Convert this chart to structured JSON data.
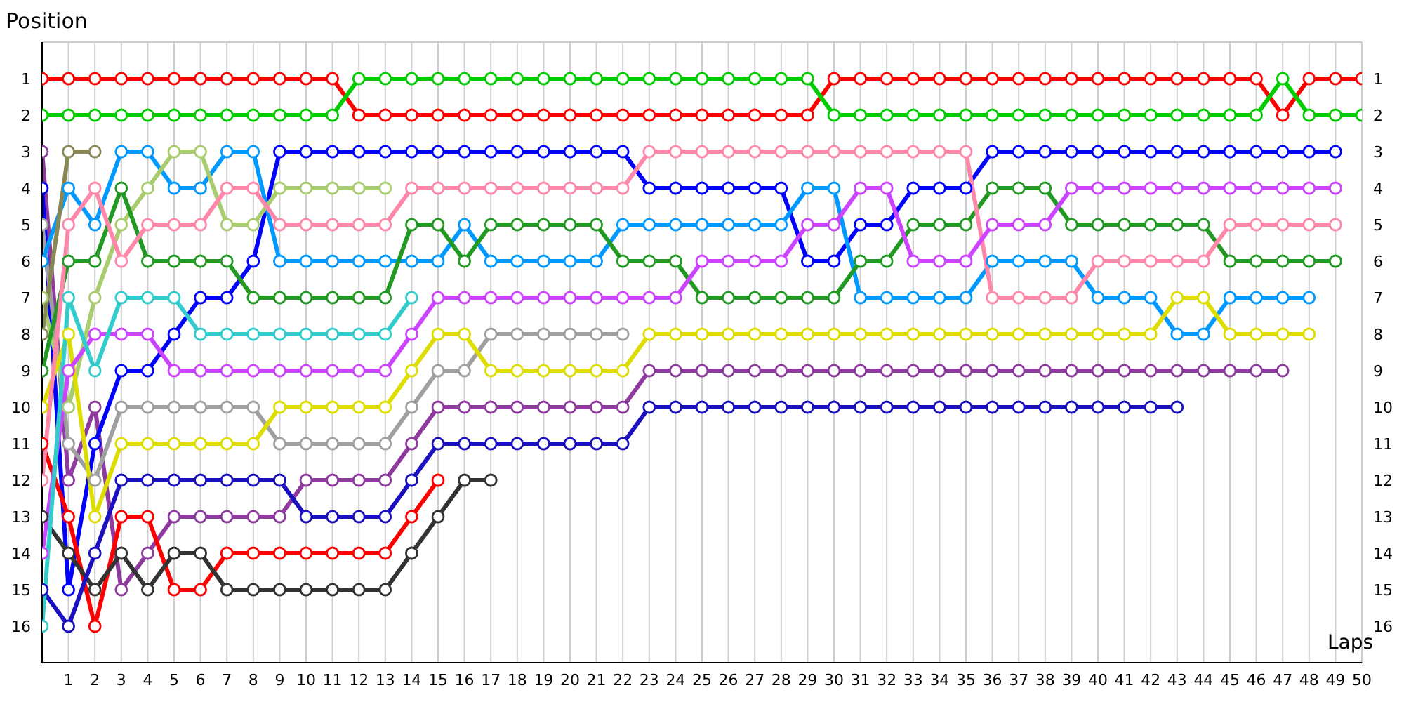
{
  "chart_data": {
    "type": "line",
    "xlabel": "Laps",
    "ylabel": "Position",
    "x": [
      0,
      1,
      2,
      3,
      4,
      5,
      6,
      7,
      8,
      9,
      10,
      11,
      12,
      13,
      14,
      15,
      16,
      17,
      18,
      19,
      20,
      21,
      22,
      23,
      24,
      25,
      26,
      27,
      28,
      29,
      30,
      31,
      32,
      33,
      34,
      35,
      36,
      37,
      38,
      39,
      40,
      41,
      42,
      43,
      44,
      45,
      46,
      47,
      48,
      49,
      50
    ],
    "xlim": [
      0,
      50
    ],
    "xticks": [
      1,
      2,
      3,
      4,
      5,
      6,
      7,
      8,
      9,
      10,
      11,
      12,
      13,
      14,
      15,
      16,
      17,
      18,
      19,
      20,
      21,
      22,
      23,
      24,
      25,
      26,
      27,
      28,
      29,
      30,
      31,
      32,
      33,
      34,
      35,
      36,
      37,
      38,
      39,
      40,
      41,
      42,
      43,
      44,
      45,
      46,
      47,
      48,
      49,
      50
    ],
    "ylim": [
      17,
      0
    ],
    "yticks": [
      1,
      2,
      3,
      4,
      5,
      6,
      7,
      8,
      9,
      10,
      11,
      12,
      13,
      14,
      15,
      16
    ],
    "y2lim": [
      17,
      0
    ],
    "y2ticks": [
      1,
      2,
      3,
      4,
      5,
      6,
      7,
      8,
      9,
      10,
      11,
      12,
      13,
      14,
      15,
      16
    ],
    "grid": true,
    "marker": "circle",
    "line_style": "solid",
    "series": [
      {
        "color": "#ff0000",
        "values": [
          1,
          1,
          1,
          1,
          1,
          1,
          1,
          1,
          1,
          1,
          1,
          1,
          2,
          2,
          2,
          2,
          2,
          2,
          2,
          2,
          2,
          2,
          2,
          2,
          2,
          2,
          2,
          2,
          2,
          2,
          1,
          1,
          1,
          1,
          1,
          1,
          1,
          1,
          1,
          1,
          1,
          1,
          1,
          1,
          1,
          1,
          1,
          2,
          1,
          1,
          1
        ]
      },
      {
        "color": "#00cc00",
        "values": [
          2,
          2,
          2,
          2,
          2,
          2,
          2,
          2,
          2,
          2,
          2,
          2,
          1,
          1,
          1,
          1,
          1,
          1,
          1,
          1,
          1,
          1,
          1,
          1,
          1,
          1,
          1,
          1,
          1,
          1,
          2,
          2,
          2,
          2,
          2,
          2,
          2,
          2,
          2,
          2,
          2,
          2,
          2,
          2,
          2,
          2,
          2,
          1,
          2,
          2,
          2
        ]
      },
      {
        "color": "#8e3a9e",
        "values": [
          3,
          12,
          10,
          15,
          14,
          13,
          13,
          13,
          13,
          13,
          12,
          12,
          12,
          12,
          11,
          10,
          10,
          10,
          10,
          10,
          10,
          10,
          10,
          9,
          9,
          9,
          9,
          9,
          9,
          9,
          9,
          9,
          9,
          9,
          9,
          9,
          9,
          9,
          9,
          9,
          9,
          9,
          9,
          9,
          9,
          9,
          9,
          9,
          null,
          null,
          null
        ]
      },
      {
        "color": "#0000ff",
        "values": [
          4,
          15,
          11,
          9,
          9,
          8,
          7,
          7,
          6,
          3,
          3,
          3,
          3,
          3,
          3,
          3,
          3,
          3,
          3,
          3,
          3,
          3,
          3,
          4,
          4,
          4,
          4,
          4,
          4,
          6,
          6,
          5,
          5,
          4,
          4,
          4,
          3,
          3,
          3,
          3,
          3,
          3,
          3,
          3,
          3,
          3,
          3,
          3,
          3,
          3,
          null
        ]
      },
      {
        "color": "#a0a0a0",
        "values": [
          5,
          11,
          12,
          10,
          10,
          10,
          10,
          10,
          10,
          11,
          11,
          11,
          11,
          11,
          10,
          9,
          9,
          8,
          8,
          8,
          8,
          8,
          8,
          null,
          null,
          null,
          null,
          null,
          null,
          null,
          null,
          null,
          null,
          null,
          null,
          null,
          null,
          null,
          null,
          null,
          null,
          null,
          null,
          null,
          null,
          null,
          null,
          null,
          null,
          null,
          null
        ]
      },
      {
        "color": "#0099ff",
        "values": [
          6,
          4,
          5,
          3,
          3,
          4,
          4,
          3,
          3,
          6,
          6,
          6,
          6,
          6,
          6,
          6,
          5,
          6,
          6,
          6,
          6,
          6,
          5,
          5,
          5,
          5,
          5,
          5,
          5,
          4,
          4,
          7,
          7,
          7,
          7,
          7,
          6,
          6,
          6,
          6,
          7,
          7,
          7,
          8,
          8,
          7,
          7,
          7,
          7,
          null,
          null
        ]
      },
      {
        "color": "#a8cc6e",
        "values": [
          7,
          10,
          7,
          5,
          4,
          3,
          3,
          5,
          5,
          4,
          4,
          4,
          4,
          4,
          null,
          null,
          null,
          null,
          null,
          null,
          null,
          null,
          null,
          null,
          null,
          null,
          null,
          null,
          null,
          null,
          null,
          null,
          null,
          null,
          null,
          null,
          null,
          null,
          null,
          null,
          null,
          null,
          null,
          null,
          null,
          null,
          null,
          null,
          null,
          null,
          null
        ]
      },
      {
        "color": "#888855",
        "values": [
          8,
          3,
          3,
          null,
          null,
          null,
          null,
          null,
          null,
          null,
          null,
          null,
          null,
          null,
          null,
          null,
          null,
          null,
          null,
          null,
          null,
          null,
          null,
          null,
          null,
          null,
          null,
          null,
          null,
          null,
          null,
          null,
          null,
          null,
          null,
          null,
          null,
          null,
          null,
          null,
          null,
          null,
          null,
          null,
          null,
          null,
          null,
          null,
          null,
          null,
          null
        ]
      },
      {
        "color": "#229922",
        "values": [
          9,
          6,
          6,
          4,
          6,
          6,
          6,
          6,
          7,
          7,
          7,
          7,
          7,
          7,
          5,
          5,
          6,
          5,
          5,
          5,
          5,
          5,
          6,
          6,
          6,
          7,
          7,
          7,
          7,
          7,
          7,
          6,
          6,
          5,
          5,
          5,
          4,
          4,
          4,
          5,
          5,
          5,
          5,
          5,
          5,
          6,
          6,
          6,
          6,
          6,
          null
        ]
      },
      {
        "color": "#dddd00",
        "values": [
          10,
          8,
          13,
          11,
          11,
          11,
          11,
          11,
          11,
          10,
          10,
          10,
          10,
          10,
          9,
          8,
          8,
          9,
          9,
          9,
          9,
          9,
          9,
          8,
          8,
          8,
          8,
          8,
          8,
          8,
          8,
          8,
          8,
          8,
          8,
          8,
          8,
          8,
          8,
          8,
          8,
          8,
          8,
          7,
          7,
          8,
          8,
          8,
          8,
          null,
          null
        ]
      },
      {
        "color": "#ff0000",
        "values": [
          11,
          13,
          16,
          13,
          13,
          15,
          15,
          14,
          14,
          14,
          14,
          14,
          14,
          14,
          13,
          12,
          null,
          null,
          null,
          null,
          null,
          null,
          null,
          null,
          null,
          null,
          null,
          null,
          null,
          null,
          null,
          null,
          null,
          null,
          null,
          null,
          null,
          null,
          null,
          null,
          null,
          null,
          null,
          null,
          null,
          null,
          null,
          null,
          null,
          null,
          null
        ]
      },
      {
        "color": "#ff88aa",
        "values": [
          12,
          5,
          4,
          6,
          5,
          5,
          5,
          4,
          4,
          5,
          5,
          5,
          5,
          5,
          4,
          4,
          4,
          4,
          4,
          4,
          4,
          4,
          4,
          3,
          3,
          3,
          3,
          3,
          3,
          3,
          3,
          3,
          3,
          3,
          3,
          3,
          7,
          7,
          7,
          7,
          6,
          6,
          6,
          6,
          6,
          5,
          5,
          5,
          5,
          5,
          null
        ]
      },
      {
        "color": "#333333",
        "values": [
          13,
          14,
          15,
          14,
          15,
          14,
          14,
          15,
          15,
          15,
          15,
          15,
          15,
          15,
          14,
          13,
          12,
          12,
          null,
          null,
          null,
          null,
          null,
          null,
          null,
          null,
          null,
          null,
          null,
          null,
          null,
          null,
          null,
          null,
          null,
          null,
          null,
          null,
          null,
          null,
          null,
          null,
          null,
          null,
          null,
          null,
          null,
          null,
          null,
          null,
          null
        ]
      },
      {
        "color": "#cc44ff",
        "values": [
          14,
          9,
          8,
          8,
          8,
          9,
          9,
          9,
          9,
          9,
          9,
          9,
          9,
          9,
          8,
          7,
          7,
          7,
          7,
          7,
          7,
          7,
          7,
          7,
          7,
          6,
          6,
          6,
          6,
          5,
          5,
          4,
          4,
          6,
          6,
          6,
          5,
          5,
          5,
          4,
          4,
          4,
          4,
          4,
          4,
          4,
          4,
          4,
          4,
          4,
          null
        ]
      },
      {
        "color": "#1a10c0",
        "values": [
          15,
          16,
          14,
          12,
          12,
          12,
          12,
          12,
          12,
          12,
          13,
          13,
          13,
          13,
          12,
          11,
          11,
          11,
          11,
          11,
          11,
          11,
          11,
          10,
          10,
          10,
          10,
          10,
          10,
          10,
          10,
          10,
          10,
          10,
          10,
          10,
          10,
          10,
          10,
          10,
          10,
          10,
          10,
          10,
          null,
          null,
          null,
          null,
          null,
          null,
          null
        ]
      },
      {
        "color": "#33cccc",
        "values": [
          16,
          7,
          9,
          7,
          7,
          7,
          8,
          8,
          8,
          8,
          8,
          8,
          8,
          8,
          7,
          null,
          null,
          null,
          null,
          null,
          null,
          null,
          null,
          null,
          null,
          null,
          null,
          null,
          null,
          null,
          null,
          null,
          null,
          null,
          null,
          null,
          null,
          null,
          null,
          null,
          null,
          null,
          null,
          null,
          null,
          null,
          null,
          null,
          null,
          null,
          null
        ]
      }
    ]
  }
}
